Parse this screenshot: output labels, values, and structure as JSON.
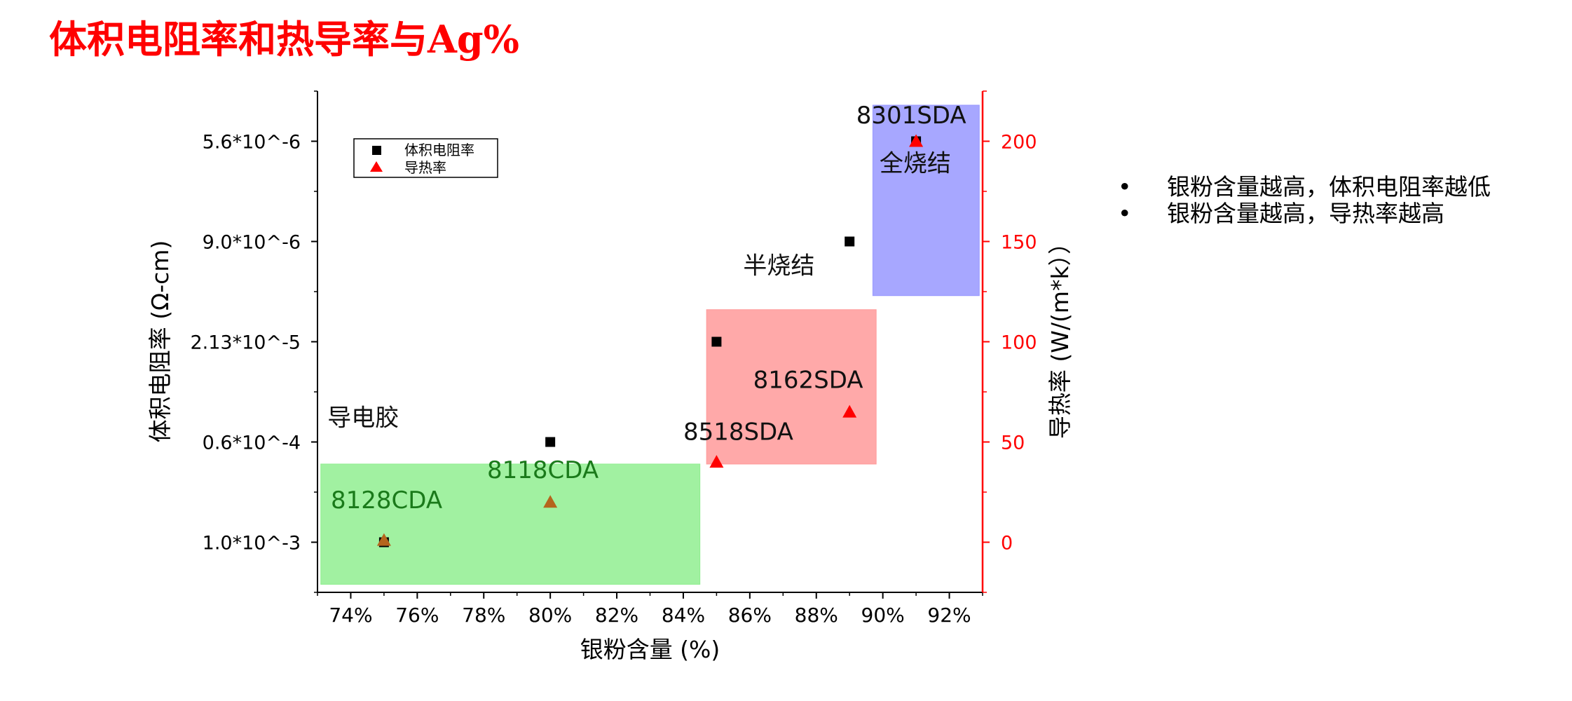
{
  "page": {
    "title": "体积电阻率和热导率与Ag%"
  },
  "bullets": [
    "银粉含量越高，体积电阻率越低",
    "银粉含量越高，导热率越高"
  ],
  "bullet_glyph": "•",
  "chart_data": {
    "type": "scatter",
    "title": "",
    "xlabel": "银粉含量 (%)",
    "ylabel_left": "体积电阻率 (Ω-cm)",
    "ylabel_right": "导热率 (W/(m*k））",
    "xlim": [
      73,
      93
    ],
    "xticks": [
      74,
      76,
      78,
      80,
      82,
      84,
      86,
      88,
      90,
      92
    ],
    "xtick_labels": [
      "74%",
      "76%",
      "78%",
      "80%",
      "82%",
      "84%",
      "86%",
      "88%",
      "90%",
      "92%"
    ],
    "ylim_right": [
      -25,
      225
    ],
    "yticks_right": [
      0,
      50,
      100,
      150,
      200
    ],
    "yticks_left_at": [
      0,
      50,
      100,
      150,
      200
    ],
    "ytick_labels_left": [
      "1.0*10^-3",
      "0.6*10^-4",
      "2.13*10^-5",
      "9.0*10^-6",
      "5.6*10^-6"
    ],
    "legend_position": "top-left",
    "series": [
      {
        "name": "体积电阻率",
        "marker": "square",
        "color": "#000000",
        "axis": "left",
        "x": [
          75,
          80,
          85,
          89,
          91
        ],
        "y": [
          "1.0*10^-3",
          "0.6*10^-4",
          "2.13*10^-5",
          "9.0*10^-6",
          "5.6*10^-6"
        ]
      },
      {
        "name": "导热率",
        "marker": "triangle",
        "color": "#ff0000",
        "axis": "right",
        "x": [
          75,
          80,
          85,
          89,
          91
        ],
        "y": [
          1,
          20,
          40,
          65,
          200
        ]
      }
    ],
    "regions": [
      {
        "label": "导电胶",
        "color": "#90ee90",
        "x": [
          73.1,
          84.5
        ],
        "y": [
          -21,
          39
        ]
      },
      {
        "label": "半烧结",
        "color": "#ff9a9a",
        "x": [
          84.7,
          89.8
        ],
        "y": [
          39,
          116
        ]
      },
      {
        "label": "全烧结",
        "color": "#9898ff",
        "x": [
          89.7,
          92.9
        ],
        "y": [
          123,
          218
        ]
      }
    ],
    "annotations": [
      {
        "text": "8128CDA",
        "color": "#1a7a1a",
        "x": 73.4,
        "y": 17
      },
      {
        "text": "8118CDA",
        "color": "#1a7a1a",
        "x": 78.1,
        "y": 32
      },
      {
        "text": "8518SDA",
        "color": "#111111",
        "x": 84.0,
        "y": 51
      },
      {
        "text": "8162SDA",
        "color": "#111111",
        "x": 86.1,
        "y": 77
      },
      {
        "text": "8301SDA",
        "color": "#111111",
        "x": 89.2,
        "y": 209
      },
      {
        "text": "导电胶",
        "color": "#111111",
        "x": 73.3,
        "y": 58
      },
      {
        "text": "半烧结",
        "color": "#111111",
        "x": 85.8,
        "y": 134
      },
      {
        "text": "全烧结",
        "color": "#111111",
        "x": 89.9,
        "y": 185
      }
    ],
    "colors": {
      "right_axis": "#ff0000",
      "left_axis": "#000000"
    }
  }
}
